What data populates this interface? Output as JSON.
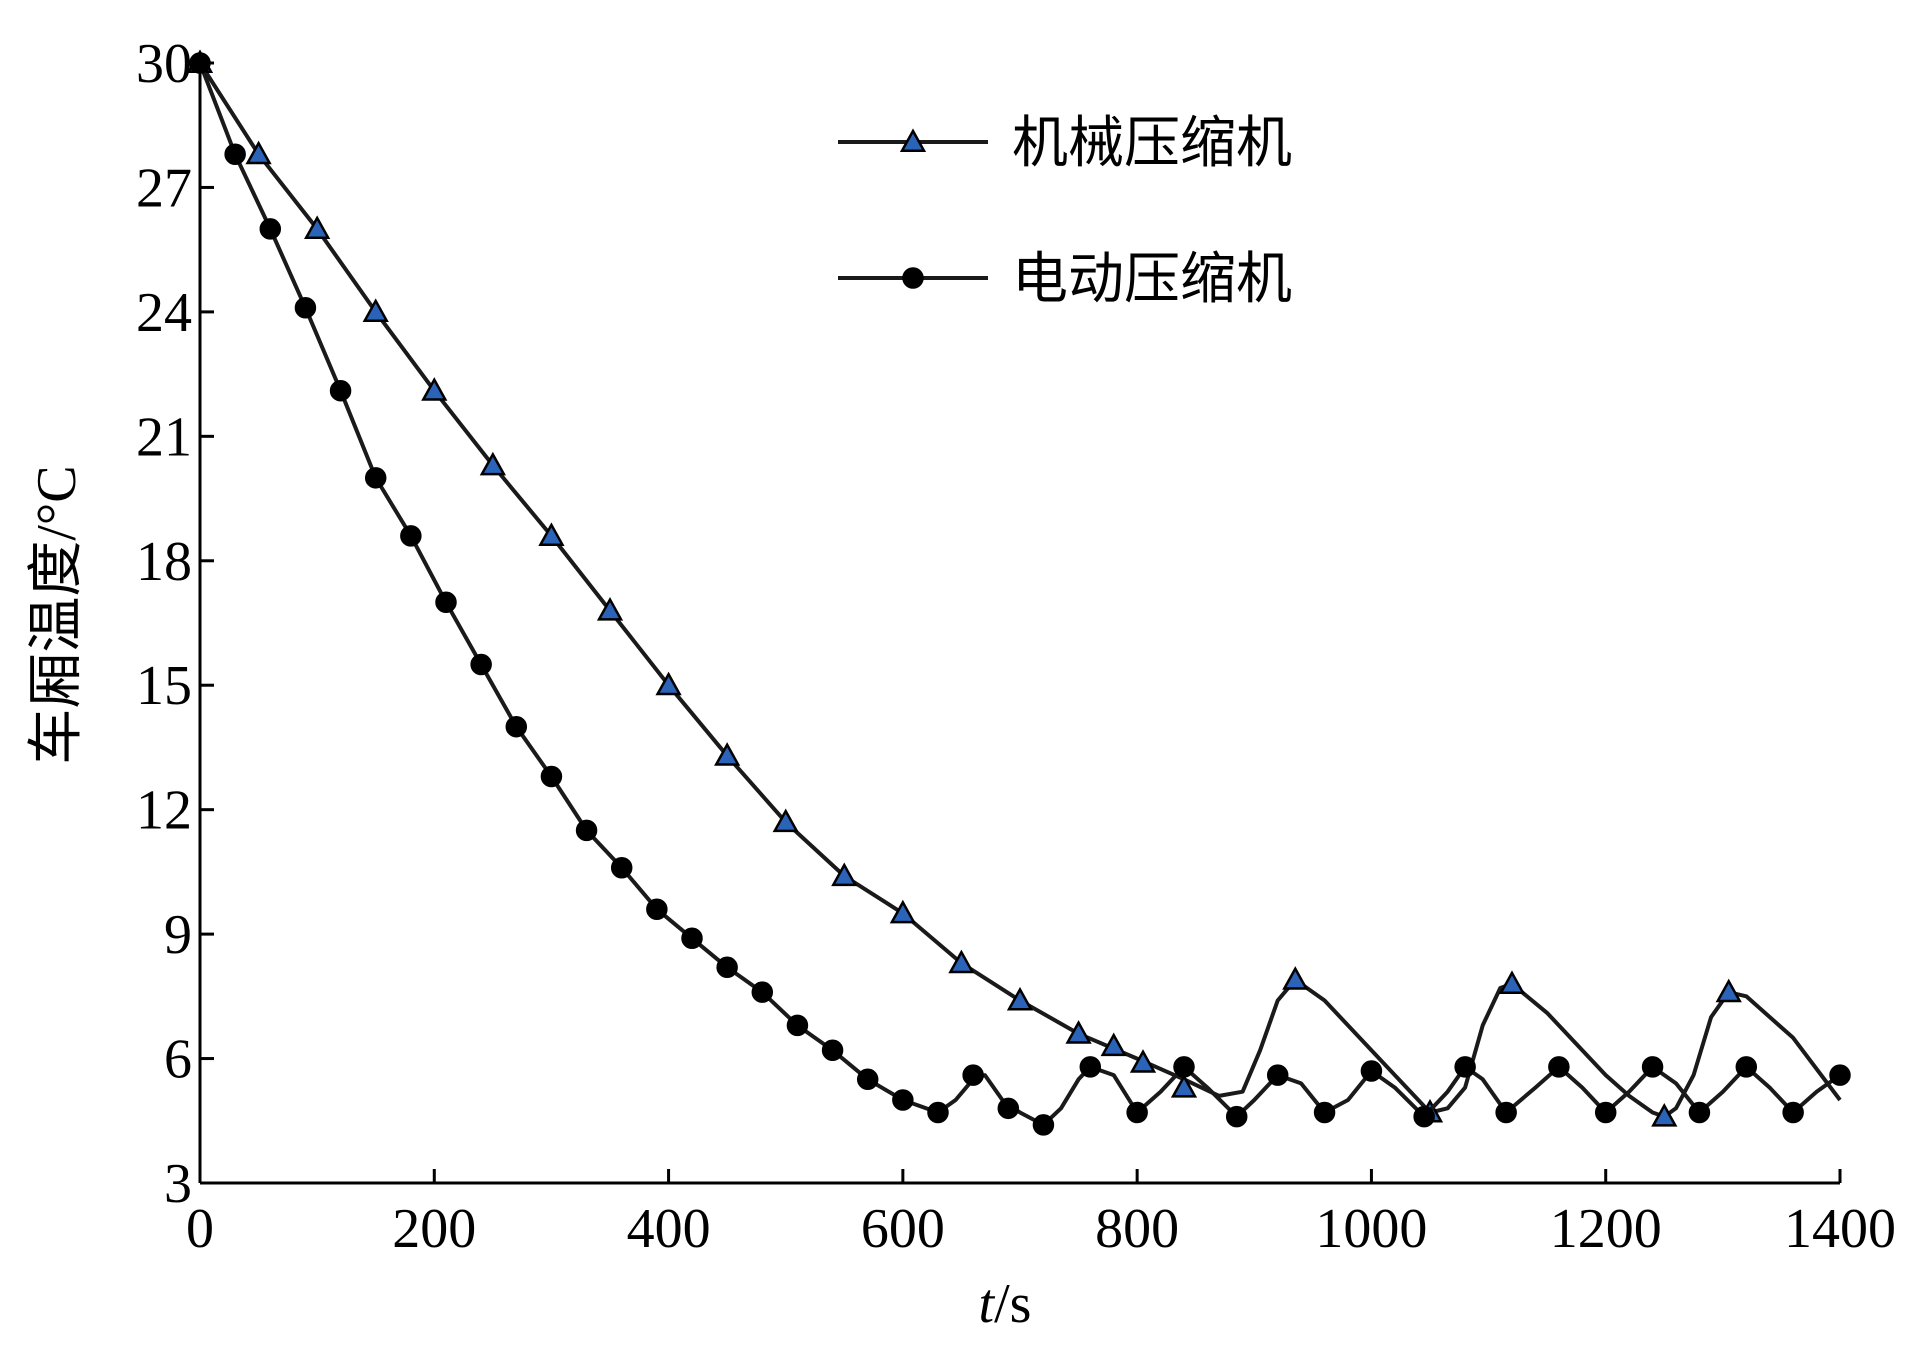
{
  "chart_data": {
    "type": "line",
    "xlabel": "t/s",
    "xlabel_italic_part": "t",
    "xlabel_rest": "/s",
    "ylabel": "车厢温度/°C",
    "xlim": [
      0,
      1400
    ],
    "ylim": [
      3,
      30
    ],
    "x_ticks": [
      0,
      200,
      400,
      600,
      800,
      1000,
      1200,
      1400
    ],
    "y_ticks": [
      3,
      6,
      9,
      12,
      15,
      18,
      21,
      24,
      27,
      30
    ],
    "grid": false,
    "legend_position": "top-right",
    "series": [
      {
        "name": "机械压缩机",
        "marker": "triangle",
        "marker_color": "#2a63b8",
        "line": [
          [
            0,
            30
          ],
          [
            50,
            27.8
          ],
          [
            100,
            26
          ],
          [
            150,
            24
          ],
          [
            200,
            22.1
          ],
          [
            250,
            20.3
          ],
          [
            300,
            18.6
          ],
          [
            350,
            16.8
          ],
          [
            400,
            15
          ],
          [
            450,
            13.3
          ],
          [
            500,
            11.7
          ],
          [
            550,
            10.4
          ],
          [
            600,
            9.5
          ],
          [
            650,
            8.3
          ],
          [
            700,
            7.4
          ],
          [
            750,
            6.6
          ],
          [
            800,
            6
          ],
          [
            840,
            5.5
          ],
          [
            870,
            5.1
          ],
          [
            890,
            5.2
          ],
          [
            905,
            6.2
          ],
          [
            920,
            7.4
          ],
          [
            935,
            7.9
          ],
          [
            960,
            7.4
          ],
          [
            1000,
            6.2
          ],
          [
            1040,
            5
          ],
          [
            1050,
            4.7
          ],
          [
            1065,
            4.8
          ],
          [
            1080,
            5.3
          ],
          [
            1095,
            6.8
          ],
          [
            1110,
            7.7
          ],
          [
            1120,
            7.8
          ],
          [
            1150,
            7.1
          ],
          [
            1200,
            5.6
          ],
          [
            1220,
            5.1
          ],
          [
            1240,
            4.7
          ],
          [
            1250,
            4.6
          ],
          [
            1260,
            4.8
          ],
          [
            1275,
            5.6
          ],
          [
            1290,
            7
          ],
          [
            1305,
            7.6
          ],
          [
            1320,
            7.5
          ],
          [
            1360,
            6.5
          ],
          [
            1400,
            5
          ]
        ],
        "markers": [
          [
            0,
            30
          ],
          [
            50,
            27.8
          ],
          [
            100,
            26
          ],
          [
            150,
            24
          ],
          [
            200,
            22.1
          ],
          [
            250,
            20.3
          ],
          [
            300,
            18.6
          ],
          [
            350,
            16.8
          ],
          [
            400,
            15
          ],
          [
            450,
            13.3
          ],
          [
            500,
            11.7
          ],
          [
            550,
            10.4
          ],
          [
            600,
            9.5
          ],
          [
            650,
            8.3
          ],
          [
            700,
            7.4
          ],
          [
            750,
            6.6
          ],
          [
            780,
            6.3
          ],
          [
            805,
            5.9
          ],
          [
            840,
            5.3
          ],
          [
            935,
            7.9
          ],
          [
            1050,
            4.7
          ],
          [
            1120,
            7.8
          ],
          [
            1250,
            4.6
          ],
          [
            1305,
            7.6
          ]
        ]
      },
      {
        "name": "电动压缩机",
        "marker": "circle",
        "marker_color": "#000000",
        "line": [
          [
            0,
            30
          ],
          [
            30,
            27.8
          ],
          [
            60,
            26
          ],
          [
            90,
            24.1
          ],
          [
            120,
            22.1
          ],
          [
            150,
            20
          ],
          [
            180,
            18.6
          ],
          [
            210,
            17
          ],
          [
            240,
            15.5
          ],
          [
            270,
            14
          ],
          [
            300,
            12.8
          ],
          [
            330,
            11.5
          ],
          [
            360,
            10.6
          ],
          [
            390,
            9.6
          ],
          [
            420,
            8.9
          ],
          [
            450,
            8.2
          ],
          [
            480,
            7.6
          ],
          [
            510,
            6.8
          ],
          [
            540,
            6.2
          ],
          [
            570,
            5.5
          ],
          [
            600,
            5
          ],
          [
            630,
            4.7
          ],
          [
            645,
            5
          ],
          [
            660,
            5.5
          ],
          [
            670,
            5.6
          ],
          [
            685,
            5
          ],
          [
            700,
            4.7
          ],
          [
            720,
            4.4
          ],
          [
            735,
            4.8
          ],
          [
            750,
            5.5
          ],
          [
            760,
            5.8
          ],
          [
            780,
            5.6
          ],
          [
            800,
            4.7
          ],
          [
            820,
            5.2
          ],
          [
            840,
            5.8
          ],
          [
            860,
            5.3
          ],
          [
            885,
            4.6
          ],
          [
            900,
            5
          ],
          [
            920,
            5.6
          ],
          [
            940,
            5.4
          ],
          [
            960,
            4.7
          ],
          [
            980,
            5
          ],
          [
            1000,
            5.7
          ],
          [
            1020,
            5.3
          ],
          [
            1045,
            4.6
          ],
          [
            1065,
            5.2
          ],
          [
            1080,
            5.8
          ],
          [
            1095,
            5.5
          ],
          [
            1115,
            4.7
          ],
          [
            1140,
            5.3
          ],
          [
            1160,
            5.8
          ],
          [
            1180,
            5.3
          ],
          [
            1200,
            4.7
          ],
          [
            1220,
            5.2
          ],
          [
            1240,
            5.8
          ],
          [
            1260,
            5.4
          ],
          [
            1280,
            4.7
          ],
          [
            1300,
            5.2
          ],
          [
            1320,
            5.8
          ],
          [
            1340,
            5.3
          ],
          [
            1360,
            4.7
          ],
          [
            1380,
            5.2
          ],
          [
            1400,
            5.6
          ]
        ],
        "markers": [
          [
            0,
            30
          ],
          [
            30,
            27.8
          ],
          [
            60,
            26
          ],
          [
            90,
            24.1
          ],
          [
            120,
            22.1
          ],
          [
            150,
            20
          ],
          [
            180,
            18.6
          ],
          [
            210,
            17
          ],
          [
            240,
            15.5
          ],
          [
            270,
            14
          ],
          [
            300,
            12.8
          ],
          [
            330,
            11.5
          ],
          [
            360,
            10.6
          ],
          [
            390,
            9.6
          ],
          [
            420,
            8.9
          ],
          [
            450,
            8.2
          ],
          [
            480,
            7.6
          ],
          [
            510,
            6.8
          ],
          [
            540,
            6.2
          ],
          [
            570,
            5.5
          ],
          [
            600,
            5
          ],
          [
            630,
            4.7
          ],
          [
            660,
            5.6
          ],
          [
            690,
            4.8
          ],
          [
            720,
            4.4
          ],
          [
            760,
            5.8
          ],
          [
            800,
            4.7
          ],
          [
            840,
            5.8
          ],
          [
            885,
            4.6
          ],
          [
            920,
            5.6
          ],
          [
            960,
            4.7
          ],
          [
            1000,
            5.7
          ],
          [
            1045,
            4.6
          ],
          [
            1080,
            5.8
          ],
          [
            1115,
            4.7
          ],
          [
            1160,
            5.8
          ],
          [
            1200,
            4.7
          ],
          [
            1240,
            5.8
          ],
          [
            1280,
            4.7
          ],
          [
            1320,
            5.8
          ],
          [
            1360,
            4.7
          ],
          [
            1400,
            5.6
          ]
        ]
      }
    ]
  }
}
